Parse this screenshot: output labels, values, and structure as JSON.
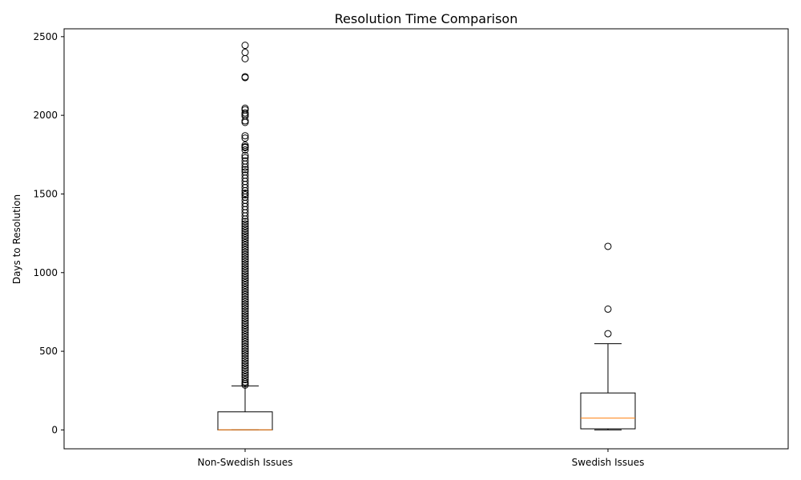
{
  "chart_data": {
    "type": "box",
    "title": "Resolution Time Comparison",
    "xlabel": "",
    "ylabel": "Days to Resolution",
    "categories": [
      "Non-Swedish Issues",
      "Swedish Issues"
    ],
    "yticks": [
      0,
      500,
      1000,
      1500,
      2000,
      2500
    ],
    "ylim": [
      -120,
      2550
    ],
    "grid": false,
    "colors": {
      "box": "#000000",
      "median": "#ff7f0e",
      "flier": "#000000"
    },
    "boxes": [
      {
        "name": "Non-Swedish Issues",
        "whisker_low": 0,
        "q1": 0,
        "median": 1,
        "q3": 115,
        "whisker_high": 280,
        "fliers": [
          2445,
          2400,
          2360,
          2245,
          2240,
          2045,
          2035,
          2015,
          2005,
          1995,
          1965,
          1955,
          1870,
          1855,
          1810,
          1800,
          1795,
          1780,
          1745,
          1730,
          1710,
          1690,
          1670,
          1655,
          1640,
          1620,
          1600,
          1580,
          1560,
          1540,
          1520,
          1505,
          1495,
          1480,
          1460,
          1440,
          1420,
          1400,
          1380,
          1360,
          1340,
          1325,
          1310,
          1295,
          1280,
          1265,
          1250,
          1235,
          1220,
          1205,
          1190,
          1175,
          1160,
          1145,
          1130,
          1115,
          1100,
          1085,
          1070,
          1055,
          1040,
          1025,
          1010,
          995,
          980,
          965,
          950,
          935,
          920,
          905,
          890,
          875,
          860,
          845,
          830,
          815,
          800,
          785,
          770,
          755,
          740,
          725,
          710,
          695,
          680,
          665,
          650,
          635,
          620,
          605,
          590,
          575,
          560,
          545,
          530,
          515,
          500,
          485,
          470,
          455,
          440,
          425,
          410,
          395,
          380,
          365,
          350,
          335,
          320,
          305,
          295,
          285
        ]
      },
      {
        "name": "Swedish Issues",
        "whisker_low": 0,
        "q1": 7,
        "median": 75,
        "q3": 235,
        "whisker_high": 548,
        "fliers": [
          1167,
          768,
          612
        ]
      }
    ]
  }
}
